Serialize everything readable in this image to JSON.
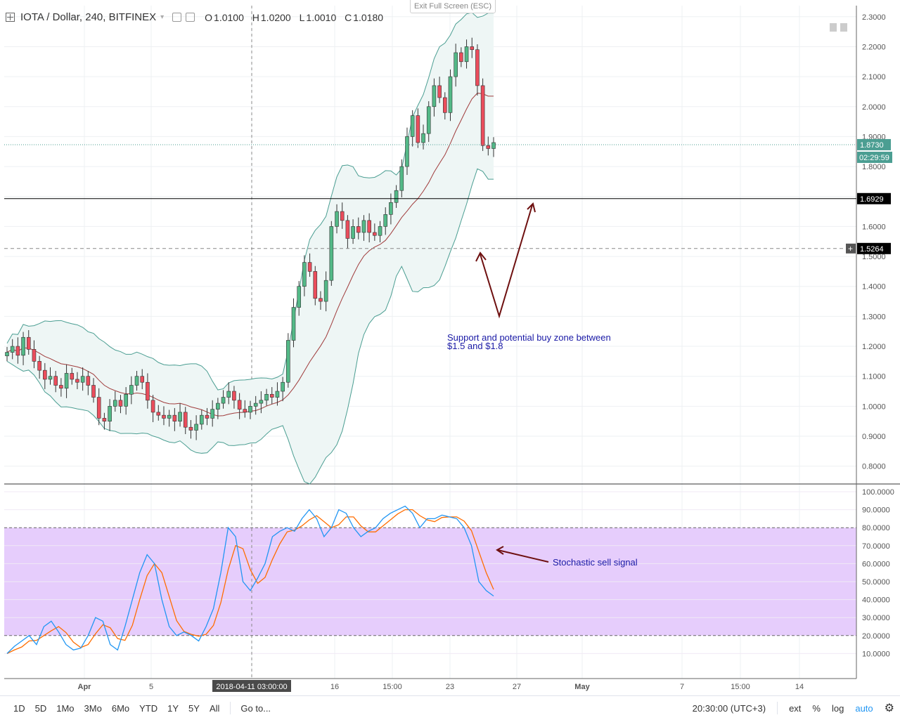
{
  "header": {
    "symbol": "IOTA / Dollar, 240, BITFINEX",
    "open_label": "O",
    "open": "1.0100",
    "high_label": "H",
    "high": "1.0200",
    "low_label": "L",
    "low": "1.0010",
    "close_label": "C",
    "close": "1.0180"
  },
  "exit_fullscreen": "Exit Full Screen (ESC)",
  "toolbar": {
    "timeframes": [
      "1D",
      "5D",
      "1Mo",
      "3Mo",
      "6Mo",
      "YTD",
      "1Y",
      "5Y",
      "All"
    ],
    "goto": "Go to...",
    "clock": "20:30:00 (UTC+3)",
    "ext": "ext",
    "percent": "%",
    "log": "log",
    "auto": "auto"
  },
  "colors": {
    "up": "#53b987",
    "down": "#eb4d5c",
    "bb_band": "#4b9e92",
    "bb_mid": "#a03c3c",
    "bb_fill": "#eef6f5",
    "stoch_k": "#2196f3",
    "stoch_d": "#ff6d00",
    "stoch_zone": "#e6cdfc",
    "arrow": "#6e1010",
    "annot_text": "#1a1aa6"
  },
  "chart_data": [
    {
      "type": "candlestick",
      "pair": "IOTA / Dollar",
      "interval": "240",
      "exchange": "BITFINEX",
      "ylim": [
        0.75,
        2.33
      ],
      "y_ticks": [
        "2.3000",
        "2.2000",
        "2.1000",
        "2.0000",
        "1.9000",
        "1.8000",
        "1.7000",
        "1.6000",
        "1.5000",
        "1.4000",
        "1.3000",
        "1.2000",
        "1.1000",
        "1.0000",
        "0.9000",
        "0.8000"
      ],
      "x_ticks": [
        "Apr",
        "5",
        "2018-04-11 03:00:00",
        "16",
        "15:00",
        "23",
        "27",
        "May",
        "7",
        "15:00",
        "14"
      ],
      "price_line": {
        "value": 1.873,
        "label": "1.8730",
        "countdown": "02:29:59"
      },
      "levels": [
        {
          "value": 1.6929,
          "label": "1.6929",
          "style": "solid"
        },
        {
          "value": 1.5264,
          "label": "1.5264",
          "style": "dashed"
        }
      ],
      "annotations": [
        {
          "text": "Support and potential buy zone between",
          "text2": "$1.5 and $1.8"
        }
      ],
      "closes": [
        1.18,
        1.2,
        1.17,
        1.23,
        1.19,
        1.15,
        1.12,
        1.09,
        1.1,
        1.07,
        1.06,
        1.11,
        1.09,
        1.08,
        1.1,
        1.07,
        1.03,
        0.96,
        0.95,
        1.0,
        1.02,
        1.0,
        1.04,
        1.07,
        1.1,
        1.08,
        1.02,
        0.98,
        0.97,
        0.96,
        0.97,
        0.95,
        0.98,
        0.93,
        0.92,
        0.94,
        0.97,
        0.96,
        0.99,
        1.01,
        1.03,
        1.05,
        1.02,
        0.99,
        0.98,
        1.0,
        1.01,
        1.02,
        1.04,
        1.03,
        1.05,
        1.08,
        1.22,
        1.33,
        1.4,
        1.48,
        1.45,
        1.36,
        1.35,
        1.42,
        1.6,
        1.65,
        1.62,
        1.56,
        1.6,
        1.58,
        1.62,
        1.58,
        1.57,
        1.6,
        1.64,
        1.68,
        1.72,
        1.8,
        1.9,
        1.97,
        1.88,
        1.91,
        2.0,
        2.07,
        2.03,
        1.98,
        2.1,
        2.18,
        2.15,
        2.2,
        2.19,
        2.07,
        1.87,
        1.86,
        1.88
      ]
    },
    {
      "type": "line",
      "indicator": "Stochastic",
      "ylim": [
        0,
        100
      ],
      "y_ticks": [
        "100.0000",
        "90.0000",
        "80.0000",
        "70.0000",
        "60.0000",
        "50.0000",
        "40.0000",
        "30.0000",
        "20.0000",
        "10.0000"
      ],
      "bands": [
        20,
        80
      ],
      "annotations": [
        {
          "text": "Stochastic sell signal"
        }
      ],
      "k": [
        10,
        14,
        17,
        20,
        15,
        25,
        28,
        22,
        15,
        12,
        13,
        20,
        30,
        28,
        15,
        12,
        25,
        40,
        55,
        65,
        60,
        40,
        25,
        20,
        22,
        20,
        17,
        25,
        35,
        55,
        80,
        75,
        50,
        45,
        52,
        60,
        75,
        78,
        80,
        78,
        85,
        90,
        85,
        75,
        80,
        90,
        88,
        80,
        75,
        78,
        80,
        85,
        88,
        90,
        92,
        88,
        80,
        85,
        85,
        87,
        86,
        85,
        80,
        70,
        50,
        45,
        42
      ]
    }
  ]
}
